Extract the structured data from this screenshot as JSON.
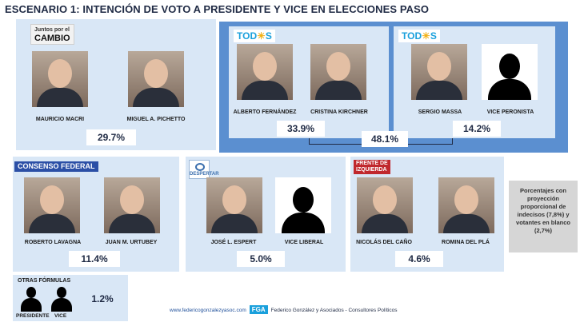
{
  "title": "ESCENARIO 1: INTENCIÓN DE VOTO A PRESIDENTE Y VICE EN ELECCIONES PASO",
  "colors": {
    "panel_light": "#d9e7f6",
    "panel_dark": "#5b8fd0",
    "title": "#1f2a44"
  },
  "groups": {
    "juntos": {
      "logo_top": "Juntos por el",
      "logo_bottom": "CAMBIO",
      "candidates": [
        "MAURICIO MACRI",
        "MIGUEL A. PICHETTO"
      ],
      "percent": "29.7%"
    },
    "todos1": {
      "logo": "TOD",
      "logo_sun": "☀",
      "logo_end": "S",
      "candidates": [
        "ALBERTO FERNÁNDEZ",
        "CRISTINA KIRCHNER"
      ],
      "percent": "33.9%"
    },
    "todos2": {
      "logo": "TOD",
      "logo_sun": "☀",
      "logo_end": "S",
      "candidates": [
        "SERGIO MASSA",
        "VICE PERONISTA"
      ],
      "percent": "14.2%"
    },
    "todos_total": "48.1%",
    "consenso": {
      "logo": "CONSENSO FEDERAL",
      "candidates": [
        "ROBERTO LAVAGNA",
        "JUAN M. URTUBEY"
      ],
      "percent": "11.4%"
    },
    "despertar": {
      "logo": "DESPERTAR",
      "candidates": [
        "JOSÉ L. ESPERT",
        "VICE LIBERAL"
      ],
      "percent": "5.0%"
    },
    "frente": {
      "logo_top": "FRENTE DE",
      "logo_bottom": "IZQUIERDA",
      "candidates": [
        "NICOLÁS DEL CAÑO",
        "ROMINA DEL PLÁ"
      ],
      "percent": "4.6%"
    },
    "otras": {
      "label": "OTRAS FÓRMULAS",
      "sub_labels": [
        "PRESIDENTE",
        "VICE"
      ],
      "percent": "1.2%"
    }
  },
  "note": "Porcentajes con proyección proporcional de indecisos (7,8%) y votantes en blanco (2,7%)",
  "footer": {
    "url": "www.federicogonzalezyasoc.com",
    "logo": "FGA",
    "company": "Federico González y Asociados - Consultores Políticos"
  }
}
